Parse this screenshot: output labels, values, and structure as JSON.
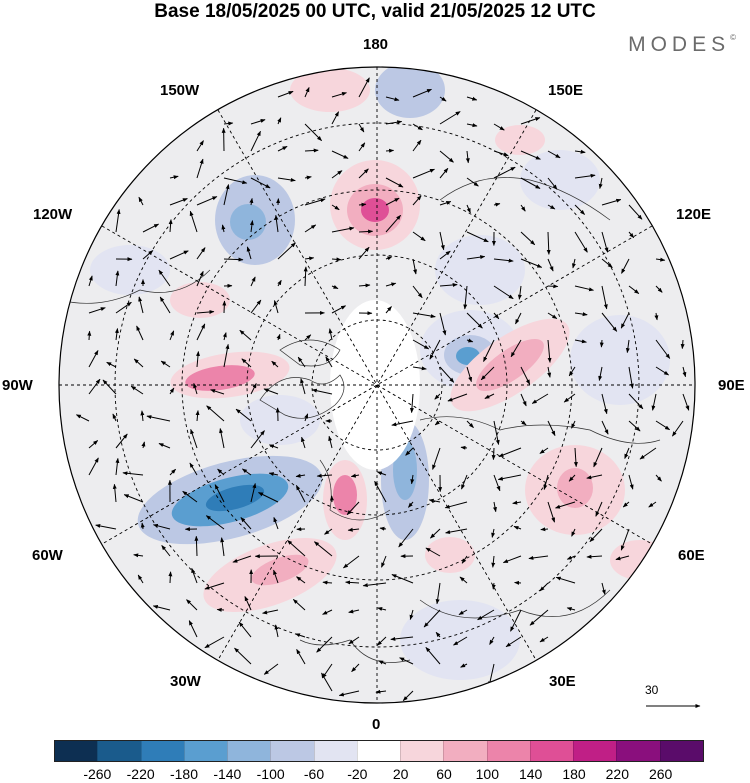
{
  "title": "Base 18/05/2025 00 UTC, valid 21/05/2025 12 UTC",
  "brand": "MODES",
  "brand_mark": "©",
  "longitude_labels": {
    "lon_180": "180",
    "lon_150W": "150W",
    "lon_150E": "150E",
    "lon_120W": "120W",
    "lon_120E": "120E",
    "lon_90W": "90W",
    "lon_90E": "90E",
    "lon_60W": "60W",
    "lon_60E": "60E",
    "lon_30W": "30W",
    "lon_30E": "30E",
    "lon_0": "0"
  },
  "colorbar": {
    "ticks": [
      "-260",
      "-220",
      "-180",
      "-140",
      "-100",
      "-60",
      "-20",
      "20",
      "60",
      "100",
      "140",
      "180",
      "220",
      "260"
    ],
    "colors": [
      "#0d2f52",
      "#1a5b8c",
      "#2f7db8",
      "#5a9ed0",
      "#8fb5dc",
      "#bcc8e4",
      "#e2e4f2",
      "#ffffff",
      "#f7d6dc",
      "#f2aec0",
      "#ec84aa",
      "#df4f96",
      "#c01f86",
      "#8a0f7d",
      "#5a0c6a"
    ]
  },
  "reference_vector": "30"
}
